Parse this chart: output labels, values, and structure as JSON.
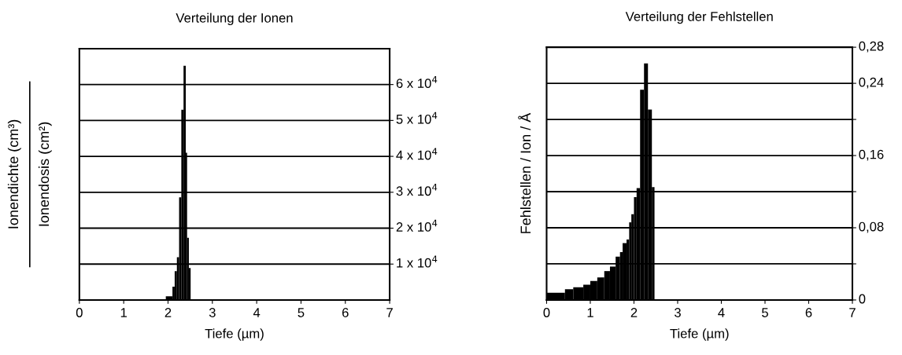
{
  "chart_data": [
    {
      "type": "histogram",
      "title": "Verteilung der Ionen",
      "xlabel": "Tiefe (µm)",
      "ylabel": "Ionendichte (cm³)\nIonendosis (cm²)",
      "bins": [
        1.95,
        2.1,
        2.15,
        2.2,
        2.25,
        2.3,
        2.35,
        2.4,
        2.43,
        2.47,
        2.51
      ],
      "values": [
        1000,
        3700,
        8000,
        11900,
        28600,
        53000,
        65200,
        41000,
        17300,
        8900
      ],
      "color": "#000000",
      "xlim": [
        0,
        7
      ],
      "xticks": [
        0,
        1,
        2,
        3,
        4,
        5,
        6,
        7
      ],
      "ylim": [
        0,
        70000
      ],
      "yticks": [
        {
          "value": 10000,
          "label": "1 x 10$^{4}$"
        },
        {
          "value": 20000,
          "label": "2 x 10$^{4}$"
        },
        {
          "value": 30000,
          "label": "3 x 10$^{4}$"
        },
        {
          "value": 40000,
          "label": "4 x 10$^{4}$"
        },
        {
          "value": 50000,
          "label": "5 x 10$^{4}$"
        },
        {
          "value": 60000,
          "label": "6 x 10$^{4}$"
        }
      ],
      "grid": "y"
    },
    {
      "type": "histogram",
      "title": "Verteilung der Fehlstellen",
      "xlabel": "Tiefe (µm)",
      "ylabel": "Fehlstellen / Ion / Å",
      "bins": [
        0,
        0.42,
        0.61,
        0.84,
        1.0,
        1.16,
        1.32,
        1.45,
        1.58,
        1.68,
        1.74,
        1.83,
        1.89,
        1.94,
        2.0,
        2.06,
        2.14,
        2.23,
        2.32,
        2.41,
        2.47
      ],
      "values": [
        0.008,
        0.012,
        0.014,
        0.017,
        0.021,
        0.025,
        0.032,
        0.037,
        0.048,
        0.053,
        0.063,
        0.067,
        0.086,
        0.095,
        0.114,
        0.124,
        0.233,
        0.262,
        0.211,
        0.125
      ],
      "color": "#000000",
      "xlim": [
        0,
        7
      ],
      "xticks": [
        0,
        1,
        2,
        3,
        4,
        5,
        6,
        7
      ],
      "ylim": [
        0,
        0.28
      ],
      "yticks": [
        {
          "value": 0,
          "label": "0"
        },
        {
          "value": 0.04,
          "label": null
        },
        {
          "value": 0.08,
          "label": "0,08"
        },
        {
          "value": 0.12,
          "label": null
        },
        {
          "value": 0.16,
          "label": "0,16"
        },
        {
          "value": 0.2,
          "label": null
        },
        {
          "value": 0.24,
          "label": "0,24"
        },
        {
          "value": 0.28,
          "label": "0,28"
        }
      ],
      "grid": "y"
    }
  ]
}
